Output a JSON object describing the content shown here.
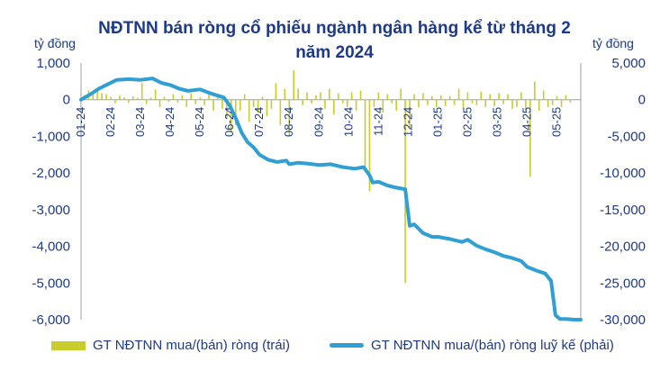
{
  "chart_data": {
    "type": "bar+line",
    "title_lines": [
      "NĐTNN bán ròng cổ phiếu ngành ngân hàng kể từ tháng 2",
      "năm 2024"
    ],
    "ylabel_left": "tỷ đồng",
    "ylabel_right": "tỷ đồng",
    "ylim_left": [
      -6000,
      1000
    ],
    "yticks_left": [
      1000,
      0,
      -1000,
      -2000,
      -3000,
      -4000,
      -5000,
      -6000
    ],
    "yticks_left_labels": [
      "1,000",
      "0",
      "-1,000",
      "-2,000",
      "-3,000",
      "-4,000",
      "-5,000",
      "-6,000"
    ],
    "ylim_right": [
      -30000,
      5000
    ],
    "yticks_right": [
      5000,
      0,
      -5000,
      -10000,
      -15000,
      -20000,
      -25000,
      -30000
    ],
    "yticks_right_labels": [
      "5,000",
      "0",
      "-5,000",
      "-10,000",
      "-15,000",
      "-20,000",
      "-25,000",
      "-30,000"
    ],
    "xlim": [
      0,
      16.8
    ],
    "x_ticks": [
      "01-24",
      "02-24",
      "03-24",
      "04-24",
      "05-24",
      "06-24",
      "07-24",
      "08-24",
      "09-24",
      "10-24",
      "11-24",
      "12-24",
      "01-25",
      "02-25",
      "03-25",
      "04-25",
      "05-25"
    ],
    "grid": false,
    "legend_position": "bottom",
    "colors": {
      "bars": "#c8cc2c",
      "line": "#2f9fd4",
      "text": "#1d3a8a",
      "axis": "#9aa0a6"
    },
    "series": [
      {
        "name": "GT NĐTNN mua/(bán) ròng (trái)",
        "type": "bar",
        "axis": "left",
        "x": [
          0.1,
          0.25,
          0.4,
          0.55,
          0.7,
          0.85,
          1.0,
          1.15,
          1.3,
          1.45,
          1.6,
          1.75,
          1.9,
          2.05,
          2.2,
          2.35,
          2.5,
          2.65,
          2.8,
          2.95,
          3.1,
          3.25,
          3.4,
          3.55,
          3.7,
          3.85,
          4.0,
          4.15,
          4.3,
          4.45,
          4.6,
          4.75,
          4.9,
          5.05,
          5.2,
          5.35,
          5.5,
          5.65,
          5.8,
          5.95,
          6.1,
          6.25,
          6.4,
          6.55,
          6.7,
          6.85,
          7.0,
          7.15,
          7.3,
          7.45,
          7.6,
          7.75,
          7.9,
          8.05,
          8.2,
          8.35,
          8.5,
          8.65,
          8.8,
          8.95,
          9.1,
          9.25,
          9.4,
          9.55,
          9.7,
          9.85,
          10.0,
          10.15,
          10.3,
          10.45,
          10.6,
          10.75,
          10.9,
          11.05,
          11.2,
          11.35,
          11.5,
          11.65,
          11.8,
          11.95,
          12.1,
          12.25,
          12.4,
          12.55,
          12.7,
          12.85,
          13.0,
          13.15,
          13.3,
          13.45,
          13.6,
          13.75,
          13.9,
          14.05,
          14.2,
          14.35,
          14.5,
          14.65,
          14.8,
          14.95,
          15.1,
          15.25,
          15.4,
          15.55,
          15.7,
          15.85,
          16.0,
          16.15,
          16.3,
          16.45
        ],
        "values": [
          120,
          250,
          200,
          300,
          180,
          150,
          80,
          -100,
          120,
          60,
          -80,
          90,
          50,
          450,
          -120,
          60,
          280,
          -200,
          80,
          -60,
          150,
          -90,
          120,
          -200,
          180,
          -120,
          60,
          -150,
          200,
          -300,
          140,
          -250,
          -500,
          -900,
          -700,
          -300,
          150,
          -600,
          -200,
          -350,
          80,
          -450,
          -250,
          450,
          -700,
          300,
          -1000,
          800,
          300,
          -150,
          200,
          -100,
          120,
          200,
          -250,
          300,
          -400,
          180,
          -100,
          -200,
          200,
          -300,
          250,
          -1900,
          -2500,
          -200,
          200,
          -350,
          150,
          -100,
          -300,
          300,
          -5000,
          -800,
          150,
          -200,
          180,
          -150,
          100,
          -200,
          120,
          -180,
          100,
          -150,
          300,
          -250,
          200,
          -100,
          -150,
          220,
          -200,
          150,
          -180,
          180,
          -120,
          150,
          -250,
          -200,
          200,
          -300,
          -2100,
          500,
          -300,
          250,
          -200,
          -150,
          100,
          -200,
          120,
          -80
        ]
      },
      {
        "name": "GT NĐTNN mua/(bán) ròng luỹ kế (phải)",
        "type": "line",
        "axis": "right",
        "x": [
          0.0,
          0.3,
          0.6,
          0.9,
          1.2,
          1.6,
          2.0,
          2.4,
          2.7,
          3.0,
          3.3,
          3.6,
          4.0,
          4.4,
          4.8,
          5.0,
          5.2,
          5.4,
          5.6,
          5.8,
          6.0,
          6.3,
          6.6,
          6.9,
          7.0,
          7.3,
          7.6,
          8.0,
          8.4,
          8.8,
          9.2,
          9.5,
          9.7,
          9.8,
          10.0,
          10.3,
          10.6,
          10.9,
          11.05,
          11.2,
          11.5,
          11.8,
          12.0,
          12.4,
          12.8,
          13.0,
          13.3,
          13.6,
          13.9,
          14.2,
          14.5,
          14.8,
          15.0,
          15.3,
          15.6,
          15.8,
          15.95,
          16.1,
          16.3,
          16.6,
          16.8
        ],
        "values": [
          0,
          700,
          1500,
          2100,
          2700,
          2800,
          2700,
          2900,
          2300,
          2000,
          1500,
          1200,
          1400,
          800,
          300,
          -800,
          -2500,
          -4500,
          -5800,
          -6500,
          -7500,
          -8200,
          -8500,
          -8300,
          -8800,
          -8600,
          -8700,
          -8900,
          -8800,
          -9200,
          -9400,
          -9200,
          -10300,
          -11300,
          -11200,
          -11700,
          -12000,
          -12200,
          -17200,
          -17000,
          -18200,
          -18700,
          -18700,
          -19000,
          -19400,
          -19100,
          -19900,
          -20400,
          -20800,
          -21300,
          -21600,
          -22000,
          -22800,
          -23300,
          -23700,
          -24700,
          -29400,
          -29900,
          -29900,
          -30000,
          -30000
        ]
      }
    ]
  }
}
